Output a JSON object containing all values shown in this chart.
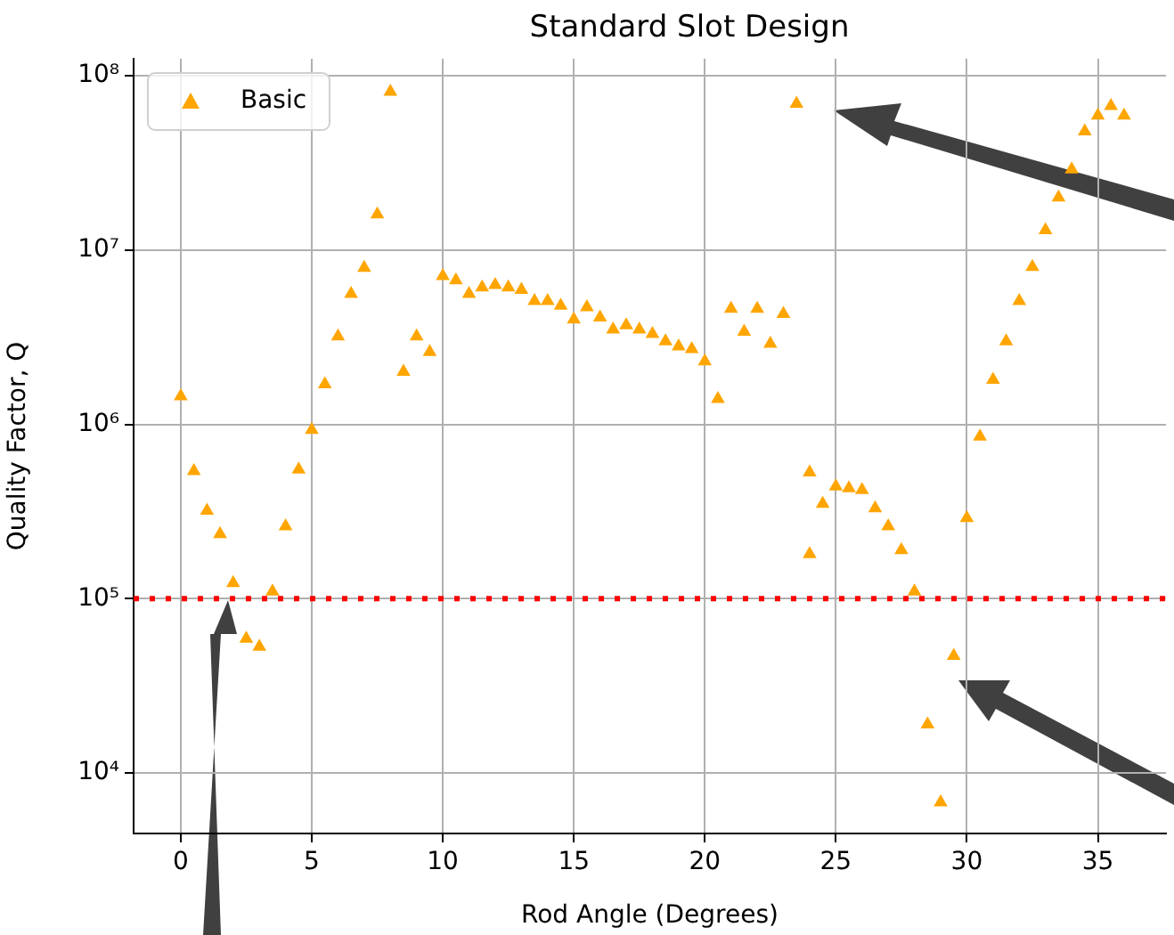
{
  "chart_data": {
    "type": "scatter",
    "title": "Standard Slot Design",
    "xlabel": "Rod Angle (Degrees)",
    "ylabel": "Quality Factor, Q",
    "x": [
      0,
      0.5,
      1,
      1.5,
      2,
      2.5,
      3,
      3.5,
      4,
      4.5,
      5,
      5.5,
      6,
      6.5,
      7,
      7.5,
      8,
      8.5,
      9,
      9.5,
      10,
      10.5,
      11,
      11.5,
      12,
      12.5,
      13,
      13.5,
      14,
      14.5,
      15,
      15.5,
      16,
      16.5,
      17,
      17.5,
      18,
      18.5,
      19,
      19.5,
      20,
      20.5,
      21,
      21.5,
      22,
      22.5,
      23,
      23.5,
      24,
      24,
      24.5,
      25,
      25.5,
      26,
      26.5,
      27,
      27.5,
      28,
      28.5,
      29,
      29.5,
      30,
      30.5,
      31,
      31.5,
      32,
      32.5,
      33,
      33.5,
      34,
      34.5,
      35,
      35.5,
      36
    ],
    "series": [
      {
        "name": "Basic",
        "color": "#ffa500",
        "values": [
          1450000,
          540000,
          320000,
          235000,
          123000,
          59000,
          53000,
          110000,
          260000,
          550000,
          930000,
          1700000,
          3200000,
          5600000,
          7900000,
          16000000,
          81000000,
          2000000,
          3200000,
          2600000,
          7100000,
          6700000,
          5600000,
          6100000,
          6300000,
          6100000,
          5900000,
          5100000,
          5100000,
          4800000,
          4000000,
          4700000,
          4100000,
          3500000,
          3700000,
          3500000,
          3300000,
          3000000,
          2800000,
          2700000,
          2300000,
          1400000,
          4600000,
          3400000,
          4600000,
          2900000,
          4300000,
          69000000,
          180000,
          530000,
          350000,
          440000,
          430000,
          420000,
          330000,
          260000,
          190000,
          110000,
          19000,
          6800,
          47000,
          290000,
          850000,
          1800000,
          3000000,
          5100000,
          8000000,
          13000000,
          20000000,
          29000000,
          48000000,
          59000000,
          67000000,
          59000000
        ]
      }
    ],
    "xlim": [
      -1.8,
      37.6
    ],
    "xticks": [
      0,
      5,
      10,
      15,
      20,
      25,
      30,
      35
    ],
    "log": "y",
    "ylim": [
      4500,
      125000000
    ],
    "yticks": [
      {
        "value": 10000,
        "label": "10⁴"
      },
      {
        "value": 100000,
        "label": "10⁵"
      },
      {
        "value": 1000000,
        "label": "10⁶"
      },
      {
        "value": 10000000,
        "label": "10⁷"
      },
      {
        "value": 100000000,
        "label": "10⁸"
      }
    ],
    "ref_lines": [
      {
        "axis": "y",
        "value": 100000,
        "color": "#ff0000",
        "line_style": "dotted"
      }
    ],
    "grid": true,
    "legend": "top left",
    "marker": "triangle"
  }
}
